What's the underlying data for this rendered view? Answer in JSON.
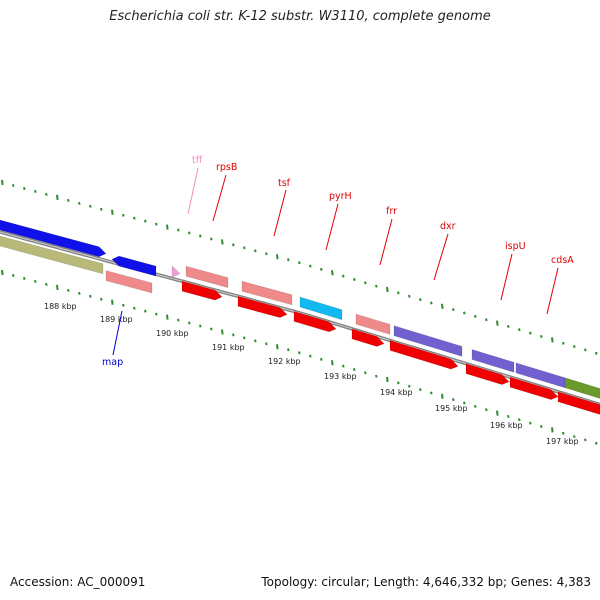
{
  "title": "Escherichia coli str. K-12 substr. W3110, complete genome",
  "footer": {
    "accession": "Accession: AC_000091",
    "summary": "Topology: circular; Length: 4,646,332 bp; Genes: 4,383"
  },
  "colors": {
    "tick": "#2e8b2e",
    "backbone": "#808080",
    "label_red": "#e00000",
    "label_blue": "#0000cc",
    "label_pink": "#f08fc0"
  },
  "ticks": [
    "188 kbp",
    "189 kbp",
    "190 kbp",
    "191 kbp",
    "192 kbp",
    "193 kbp",
    "194 kbp",
    "195 kbp",
    "196 kbp",
    "197 kbp"
  ],
  "gene_labels": [
    {
      "name": "tff",
      "color": "#f08fc0"
    },
    {
      "name": "rpsB",
      "color": "#e00000"
    },
    {
      "name": "tsf",
      "color": "#e00000"
    },
    {
      "name": "pyrH",
      "color": "#e00000"
    },
    {
      "name": "frr",
      "color": "#e00000"
    },
    {
      "name": "dxr",
      "color": "#e00000"
    },
    {
      "name": "ispU",
      "color": "#e00000"
    },
    {
      "name": "cdsA",
      "color": "#e00000"
    },
    {
      "name": "map",
      "color": "#0000cc"
    }
  ]
}
